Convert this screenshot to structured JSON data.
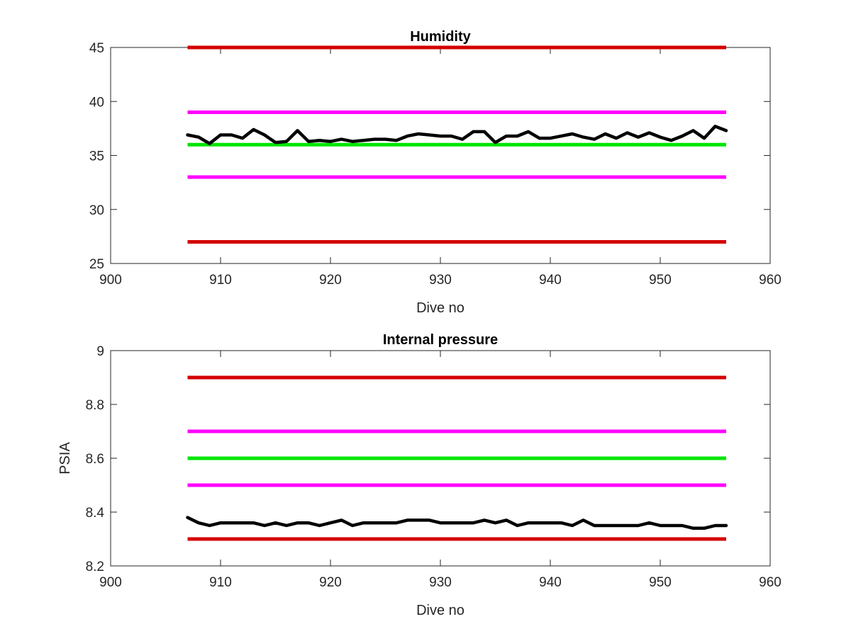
{
  "chart_data": [
    {
      "type": "line",
      "title": "Humidity",
      "xlabel": "Dive no",
      "ylabel": "",
      "xlim": [
        900,
        960
      ],
      "ylim": [
        25,
        45
      ],
      "xticks": [
        900,
        910,
        920,
        930,
        940,
        950,
        960
      ],
      "yticks": [
        25,
        30,
        35,
        40,
        45
      ],
      "xtick_labels": [
        "900",
        "910",
        "920",
        "930",
        "940",
        "950",
        "960"
      ],
      "ytick_labels": [
        "25",
        "30",
        "35",
        "40",
        "45"
      ],
      "grid": false,
      "limit_lines": [
        {
          "y": 45,
          "x": [
            907,
            956
          ],
          "color": "#d40000"
        },
        {
          "y": 39,
          "x": [
            907,
            956
          ],
          "color": "#ff00ff"
        },
        {
          "y": 36,
          "x": [
            907,
            956
          ],
          "color": "#00e600"
        },
        {
          "y": 33,
          "x": [
            907,
            956
          ],
          "color": "#ff00ff"
        },
        {
          "y": 27,
          "x": [
            907,
            956
          ],
          "color": "#d40000"
        }
      ],
      "series": [
        {
          "color": "#000000",
          "x": [
            907,
            908,
            909,
            910,
            911,
            912,
            913,
            914,
            915,
            916,
            917,
            918,
            919,
            920,
            921,
            922,
            923,
            924,
            925,
            926,
            927,
            928,
            929,
            930,
            931,
            932,
            933,
            934,
            935,
            936,
            937,
            938,
            939,
            940,
            941,
            942,
            943,
            944,
            945,
            946,
            947,
            948,
            949,
            950,
            951,
            952,
            953,
            954,
            955,
            956
          ],
          "values": [
            36.9,
            36.7,
            36.1,
            36.9,
            36.9,
            36.6,
            37.4,
            36.9,
            36.2,
            36.3,
            37.3,
            36.3,
            36.4,
            36.3,
            36.5,
            36.3,
            36.4,
            36.5,
            36.5,
            36.4,
            36.8,
            37.0,
            36.9,
            36.8,
            36.8,
            36.5,
            37.2,
            37.2,
            36.2,
            36.8,
            36.8,
            37.2,
            36.6,
            36.6,
            36.8,
            37.0,
            36.7,
            36.5,
            37.0,
            36.6,
            37.1,
            36.7,
            37.1,
            36.7,
            36.4,
            36.8,
            37.3,
            36.6,
            37.7,
            37.3
          ]
        }
      ]
    },
    {
      "type": "line",
      "title": "Internal pressure",
      "xlabel": "Dive no",
      "ylabel": "PSIA",
      "xlim": [
        900,
        960
      ],
      "ylim": [
        8.2,
        9.0
      ],
      "xticks": [
        900,
        910,
        920,
        930,
        940,
        950,
        960
      ],
      "yticks": [
        8.2,
        8.4,
        8.6,
        8.8,
        9.0
      ],
      "xtick_labels": [
        "900",
        "910",
        "920",
        "930",
        "940",
        "950",
        "960"
      ],
      "ytick_labels": [
        "8.2",
        "8.4",
        "8.6",
        "8.8",
        "9"
      ],
      "grid": false,
      "limit_lines": [
        {
          "y": 8.9,
          "x": [
            907,
            956
          ],
          "color": "#d40000"
        },
        {
          "y": 8.7,
          "x": [
            907,
            956
          ],
          "color": "#ff00ff"
        },
        {
          "y": 8.6,
          "x": [
            907,
            956
          ],
          "color": "#00e600"
        },
        {
          "y": 8.5,
          "x": [
            907,
            956
          ],
          "color": "#ff00ff"
        },
        {
          "y": 8.3,
          "x": [
            907,
            956
          ],
          "color": "#d40000"
        }
      ],
      "series": [
        {
          "color": "#000000",
          "x": [
            907,
            908,
            909,
            910,
            911,
            912,
            913,
            914,
            915,
            916,
            917,
            918,
            919,
            920,
            921,
            922,
            923,
            924,
            925,
            926,
            927,
            928,
            929,
            930,
            931,
            932,
            933,
            934,
            935,
            936,
            937,
            938,
            939,
            940,
            941,
            942,
            943,
            944,
            945,
            946,
            947,
            948,
            949,
            950,
            951,
            952,
            953,
            954,
            955,
            956
          ],
          "values": [
            8.38,
            8.36,
            8.35,
            8.36,
            8.36,
            8.36,
            8.36,
            8.35,
            8.36,
            8.35,
            8.36,
            8.36,
            8.35,
            8.36,
            8.37,
            8.35,
            8.36,
            8.36,
            8.36,
            8.36,
            8.37,
            8.37,
            8.37,
            8.36,
            8.36,
            8.36,
            8.36,
            8.37,
            8.36,
            8.37,
            8.35,
            8.36,
            8.36,
            8.36,
            8.36,
            8.35,
            8.37,
            8.35,
            8.35,
            8.35,
            8.35,
            8.35,
            8.36,
            8.35,
            8.35,
            8.35,
            8.34,
            8.34,
            8.35,
            8.35
          ]
        }
      ]
    }
  ]
}
